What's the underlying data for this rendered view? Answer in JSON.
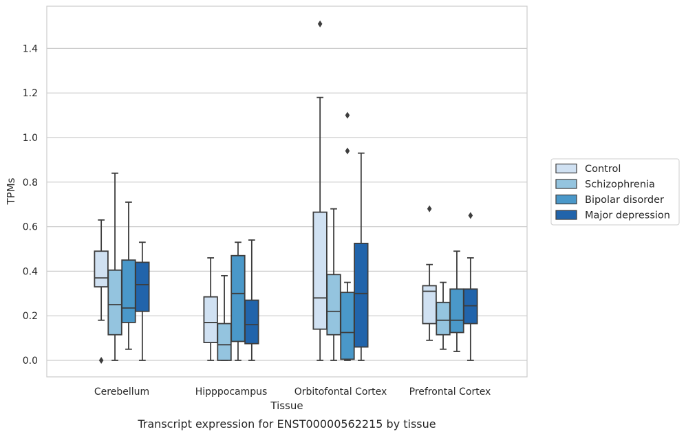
{
  "caption": "Transcript expression for ENST00000562215 by tissue",
  "chart_data": {
    "type": "box",
    "xlabel": "Tissue",
    "ylabel": "TPMs",
    "ylim": [
      -0.075,
      1.58
    ],
    "yticks": [
      0.0,
      0.2,
      0.4,
      0.6,
      0.8,
      1.0,
      1.2,
      1.4
    ],
    "ytick_labels": [
      "0.0",
      "0.2",
      "0.4",
      "0.6",
      "0.8",
      "1.0",
      "1.2",
      "1.4"
    ],
    "grid": "horizontal",
    "legend_placement": "outside-right",
    "categories": [
      "Cerebellum",
      "Hipppocampus",
      "Orbitofontal Cortex",
      "Prefrontal Cortex"
    ],
    "series": [
      {
        "name": "Control",
        "color": "#d0e1f2",
        "boxes": [
          {
            "whislo": 0.18,
            "q1": 0.33,
            "med": 0.37,
            "q3": 0.49,
            "whishi": 0.63,
            "fliers": [
              0.0
            ]
          },
          {
            "whislo": 0.0,
            "q1": 0.08,
            "med": 0.17,
            "q3": 0.285,
            "whishi": 0.46,
            "fliers": []
          },
          {
            "whislo": 0.0,
            "q1": 0.14,
            "med": 0.28,
            "q3": 0.665,
            "whishi": 1.18,
            "fliers": [
              1.51
            ]
          },
          {
            "whislo": 0.09,
            "q1": 0.165,
            "med": 0.31,
            "q3": 0.335,
            "whishi": 0.43,
            "fliers": [
              0.68
            ]
          }
        ]
      },
      {
        "name": "Schizophrenia",
        "color": "#94c4df",
        "boxes": [
          {
            "whislo": 0.0,
            "q1": 0.115,
            "med": 0.25,
            "q3": 0.405,
            "whishi": 0.84,
            "fliers": []
          },
          {
            "whislo": 0.0,
            "q1": 0.0,
            "med": 0.07,
            "q3": 0.165,
            "whishi": 0.38,
            "fliers": []
          },
          {
            "whislo": 0.0,
            "q1": 0.115,
            "med": 0.22,
            "q3": 0.385,
            "whishi": 0.68,
            "fliers": []
          },
          {
            "whislo": 0.05,
            "q1": 0.115,
            "med": 0.18,
            "q3": 0.26,
            "whishi": 0.35,
            "fliers": []
          }
        ]
      },
      {
        "name": "Bipolar disorder",
        "color": "#4a98c9",
        "boxes": [
          {
            "whislo": 0.05,
            "q1": 0.17,
            "med": 0.235,
            "q3": 0.45,
            "whishi": 0.71,
            "fliers": []
          },
          {
            "whislo": 0.0,
            "q1": 0.085,
            "med": 0.3,
            "q3": 0.47,
            "whishi": 0.53,
            "fliers": []
          },
          {
            "whislo": 0.0,
            "q1": 0.005,
            "med": 0.125,
            "q3": 0.305,
            "whishi": 0.35,
            "fliers": [
              0.94,
              1.1
            ]
          },
          {
            "whislo": 0.04,
            "q1": 0.125,
            "med": 0.18,
            "q3": 0.32,
            "whishi": 0.49,
            "fliers": []
          }
        ]
      },
      {
        "name": "Major depression",
        "color": "#2164ab",
        "boxes": [
          {
            "whislo": 0.0,
            "q1": 0.22,
            "med": 0.34,
            "q3": 0.44,
            "whishi": 0.53,
            "fliers": []
          },
          {
            "whislo": 0.0,
            "q1": 0.075,
            "med": 0.16,
            "q3": 0.27,
            "whishi": 0.54,
            "fliers": []
          },
          {
            "whislo": 0.0,
            "q1": 0.06,
            "med": 0.3,
            "q3": 0.525,
            "whishi": 0.93,
            "fliers": []
          },
          {
            "whislo": 0.0,
            "q1": 0.165,
            "med": 0.245,
            "q3": 0.32,
            "whishi": 0.46,
            "fliers": [
              0.65
            ]
          }
        ]
      }
    ]
  }
}
